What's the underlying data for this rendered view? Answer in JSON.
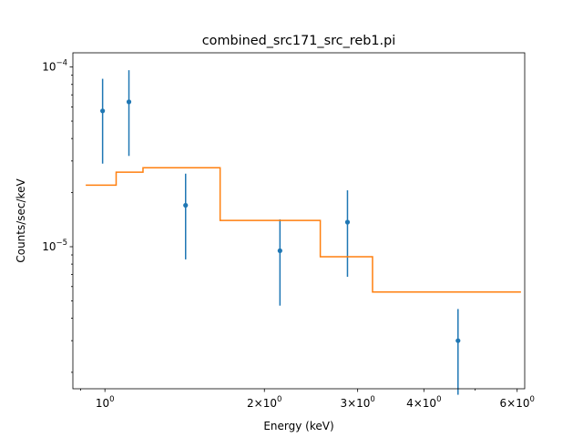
{
  "chart_data": {
    "type": "scatter",
    "title": "combined_src171_src_reb1.pi",
    "xlabel": "Energy (keV)",
    "ylabel": "Counts/sec/keV",
    "xscale": "log",
    "yscale": "log",
    "xlim": [
      0.87,
      6.2
    ],
    "ylim": [
      1.62e-06,
      0.00012
    ],
    "x_ticks": [
      {
        "value": 1,
        "mant": "",
        "exp": "0"
      },
      {
        "value": 2,
        "mant": "2×",
        "exp": "0"
      },
      {
        "value": 3,
        "mant": "3×",
        "exp": "0"
      },
      {
        "value": 4,
        "mant": "4×",
        "exp": "0"
      },
      {
        "value": 6,
        "mant": "6×",
        "exp": "0"
      }
    ],
    "y_ticks": [
      {
        "value": 1e-05,
        "exp": "−5"
      },
      {
        "value": 0.0001,
        "exp": "−4"
      }
    ],
    "grid": false,
    "series": [
      {
        "kind": "data",
        "color": "#1f77b4",
        "points": [
          {
            "x": 0.99,
            "y": 5.7e-05,
            "ylo": 2.9e-05,
            "yhi": 8.6e-05
          },
          {
            "x": 1.11,
            "y": 6.4e-05,
            "ylo": 3.2e-05,
            "yhi": 9.6e-05
          },
          {
            "x": 1.42,
            "y": 1.7e-05,
            "ylo": 8.5e-06,
            "yhi": 2.55e-05
          },
          {
            "x": 2.14,
            "y": 9.5e-06,
            "ylo": 4.7e-06,
            "yhi": 1.42e-05
          },
          {
            "x": 2.87,
            "y": 1.37e-05,
            "ylo": 6.8e-06,
            "yhi": 2.06e-05
          },
          {
            "x": 4.64,
            "y": 3e-06,
            "ylo": 1.5e-06,
            "yhi": 4.5e-06
          }
        ]
      },
      {
        "kind": "model",
        "color": "#ff7f0e",
        "steps": [
          {
            "x0": 0.92,
            "x1": 1.05,
            "y": 2.2e-05
          },
          {
            "x0": 1.05,
            "x1": 1.18,
            "y": 2.6e-05
          },
          {
            "x0": 1.18,
            "x1": 1.65,
            "y": 2.75e-05
          },
          {
            "x0": 1.65,
            "x1": 2.55,
            "y": 1.4e-05
          },
          {
            "x0": 2.55,
            "x1": 3.2,
            "y": 8.8e-06
          },
          {
            "x0": 3.2,
            "x1": 6.1,
            "y": 5.6e-06
          }
        ]
      }
    ]
  }
}
